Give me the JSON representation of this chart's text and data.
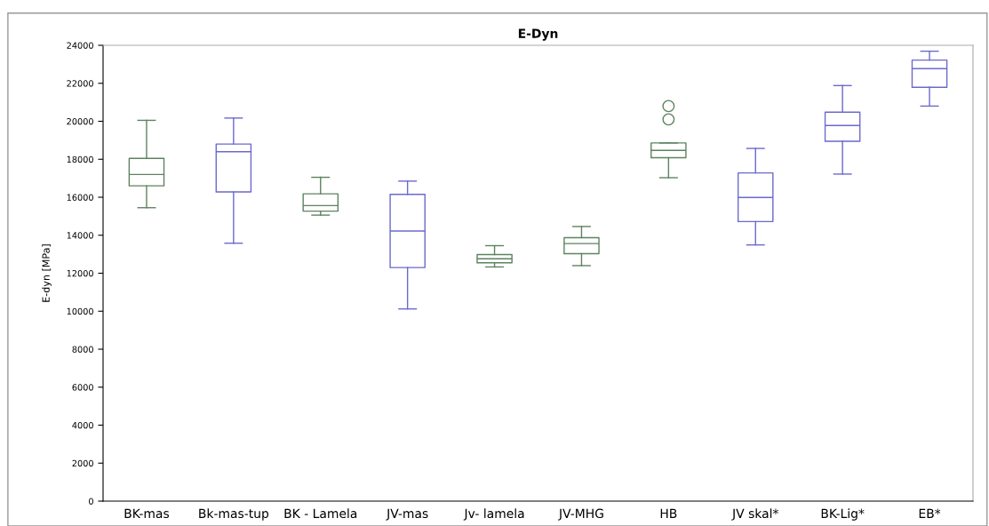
{
  "chart_data": {
    "type": "box",
    "title": "E-Dyn",
    "ylabel": "E-dyn [MPa]",
    "categories": [
      "BK-mas",
      "Bk-mas-tup",
      "BK - Lamela",
      "JV-mas",
      "Jv- lamela",
      "JV-MHG",
      "HB",
      "JV skal*",
      "BK-Lig*",
      "EB*"
    ],
    "colors": [
      "#5e8260",
      "#6a6acc",
      "#5e8260",
      "#6a6acc",
      "#5e8260",
      "#5e8260",
      "#5e8260",
      "#6a6acc",
      "#6a6acc",
      "#6a6acc"
    ],
    "boxes": [
      {
        "low": 15450,
        "q1": 16600,
        "median": 17200,
        "q3": 18050,
        "high": 20050
      },
      {
        "low": 13580,
        "q1": 16280,
        "median": 18400,
        "q3": 18800,
        "high": 20170
      },
      {
        "low": 15060,
        "q1": 15270,
        "median": 15560,
        "q3": 16180,
        "high": 17050
      },
      {
        "low": 10120,
        "q1": 12300,
        "median": 14220,
        "q3": 16150,
        "high": 16850
      },
      {
        "low": 12330,
        "q1": 12550,
        "median": 12760,
        "q3": 12980,
        "high": 13450
      },
      {
        "low": 12400,
        "q1": 13030,
        "median": 13560,
        "q3": 13870,
        "high": 14460
      },
      {
        "low": 17030,
        "q1": 18080,
        "median": 18470,
        "q3": 18860,
        "high": 18860,
        "outliers": [
          20100,
          20800
        ]
      },
      {
        "low": 13490,
        "q1": 14720,
        "median": 15990,
        "q3": 17280,
        "high": 18570
      },
      {
        "low": 17220,
        "q1": 18950,
        "median": 19780,
        "q3": 20480,
        "high": 21880
      },
      {
        "low": 20800,
        "q1": 21790,
        "median": 22770,
        "q3": 23220,
        "high": 23690
      }
    ],
    "ylim": [
      0,
      24000
    ],
    "yticks": [
      0,
      2000,
      4000,
      6000,
      8000,
      10000,
      12000,
      14000,
      16000,
      18000,
      20000,
      22000,
      24000
    ],
    "grid": false
  }
}
